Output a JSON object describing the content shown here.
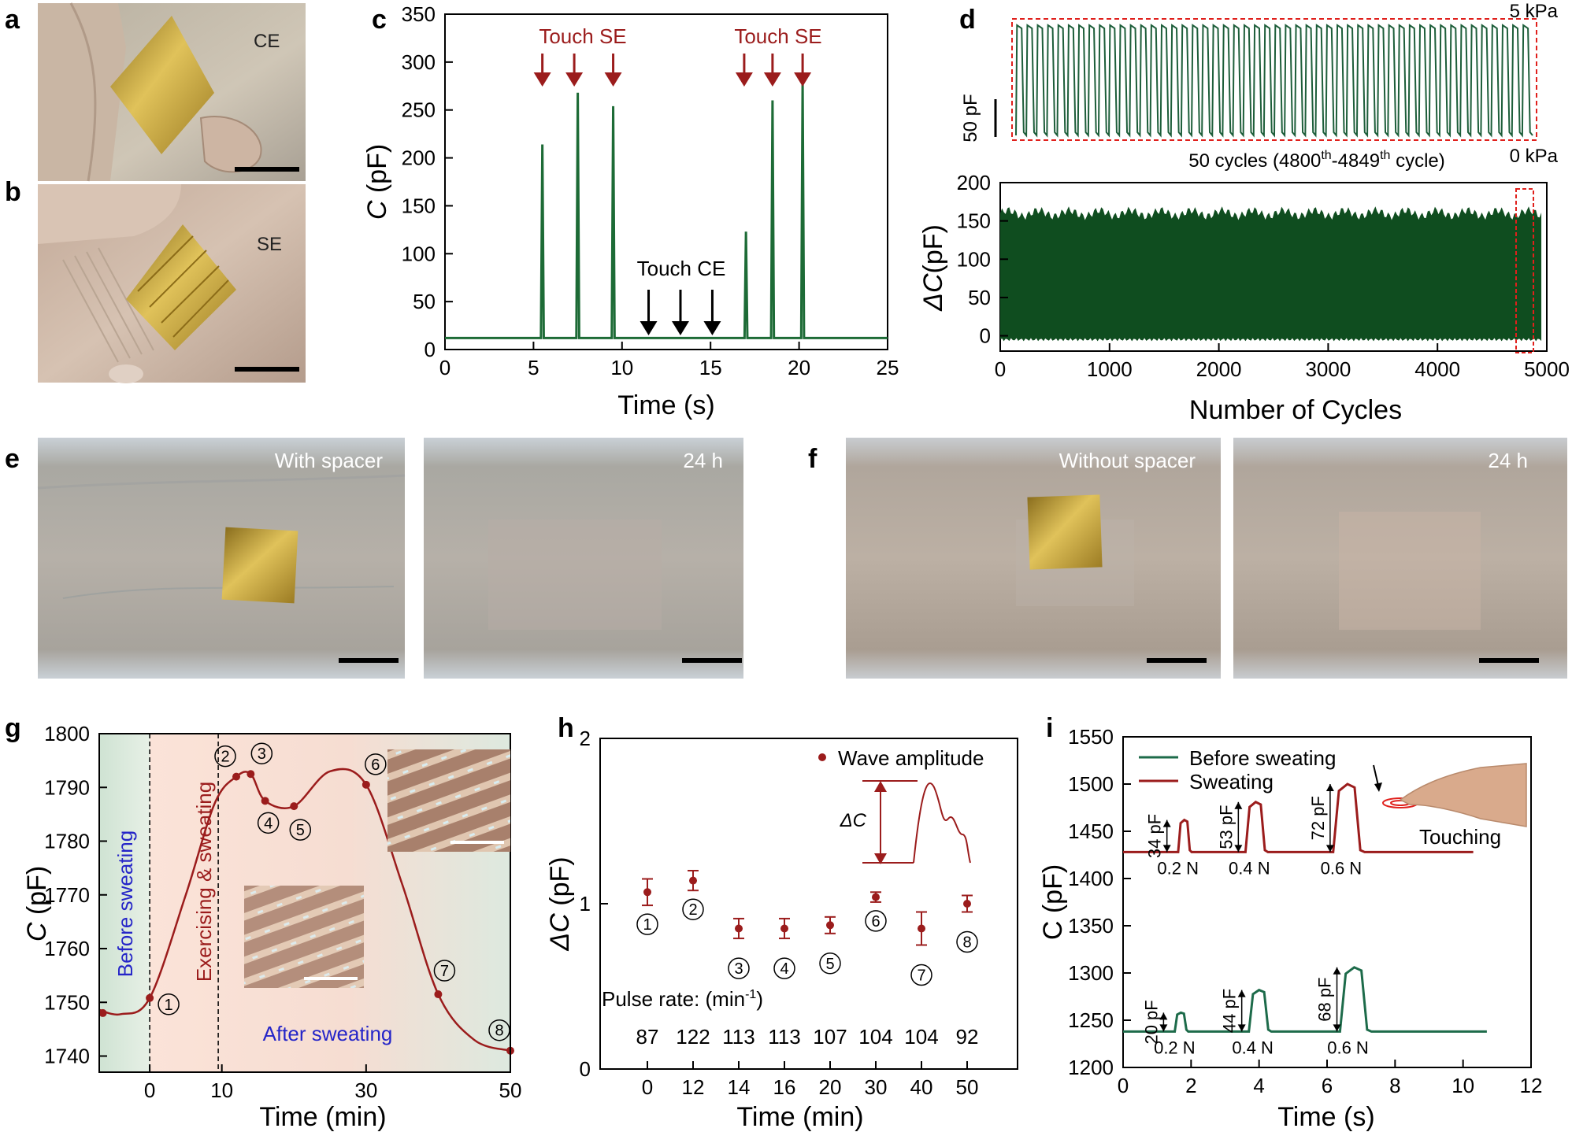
{
  "panel_labels": {
    "a": "a",
    "b": "b",
    "c": "c",
    "d": "d",
    "e": "e",
    "f": "f",
    "g": "g",
    "h": "h",
    "i": "i"
  },
  "photos": {
    "a": {
      "caption": "CE"
    },
    "b": {
      "caption": "SE"
    },
    "e1": {
      "caption": "With spacer"
    },
    "e2": {
      "caption": "24 h"
    },
    "f1": {
      "caption": "Without spacer"
    },
    "f2": {
      "caption": "24 h"
    }
  },
  "colors": {
    "green": "#1d5e3a",
    "darkgreen": "#1a4d24",
    "red": "#9b1c1c",
    "blue": "#2525c8",
    "black": "#000000"
  },
  "chart_data": [
    {
      "id": "c",
      "type": "line",
      "xlabel": "Time (s)",
      "ylabel_italic": "C",
      "ylabel_rest": " (pF)",
      "xlim": [
        0,
        25
      ],
      "ylim": [
        0,
        350
      ],
      "xticks": [
        "0",
        "5",
        "10",
        "15",
        "20",
        "25"
      ],
      "yticks": [
        "0",
        "50",
        "100",
        "150",
        "200",
        "250",
        "300",
        "350"
      ],
      "baseline": 12,
      "peaks": [
        {
          "x": 5.5,
          "y": 214
        },
        {
          "x": 7.5,
          "y": 268
        },
        {
          "x": 9.5,
          "y": 254
        },
        {
          "x": 17.0,
          "y": 123
        },
        {
          "x": 18.5,
          "y": 260
        },
        {
          "x": 20.2,
          "y": 280
        }
      ],
      "annotations": {
        "touch_se_1": "Touch SE",
        "touch_se_2": "Touch SE",
        "touch_ce": "Touch CE"
      },
      "arrows_se": [
        5.5,
        7.3,
        9.5,
        16.9,
        18.5,
        20.2
      ],
      "arrows_ce": [
        11.5,
        13.3,
        15.1
      ]
    },
    {
      "id": "d",
      "type": "area",
      "xlabel": "Number of Cycles",
      "ylabel_delta": "Δ",
      "ylabel_italic": "C",
      "ylabel_rest": "(pF)",
      "xlim": [
        0,
        5000
      ],
      "ylim": [
        -20,
        200
      ],
      "xticks": [
        "0",
        "1000",
        "2000",
        "3000",
        "4000",
        "5000"
      ],
      "yticks": [
        "0",
        "50",
        "100",
        "150",
        "200"
      ],
      "band_top": 160,
      "band_bottom": -5,
      "inset": {
        "cycles": 50,
        "caption_prefix": "50 cycles (4800",
        "sup1": "th",
        "caption_mid": "-4849",
        "sup2": "th",
        "caption_suffix": " cycle)",
        "top_label": "5 kPa",
        "bottom_label": "0 kPa",
        "scale_label": "50 pF"
      }
    },
    {
      "id": "g",
      "type": "line",
      "xlabel": "Time (min)",
      "ylabel_italic": "C",
      "ylabel_rest": " (pF)",
      "xlim": [
        -7,
        50
      ],
      "ylim": [
        1737,
        1800
      ],
      "xticks": [
        "0",
        "10",
        "30",
        "50"
      ],
      "xtick_values": [
        0,
        10,
        30,
        50
      ],
      "yticks": [
        "1740",
        "1750",
        "1760",
        "1770",
        "1780",
        "1790",
        "1800"
      ],
      "points": [
        {
          "x": -6.5,
          "y": 1748,
          "label": ""
        },
        {
          "x": 0,
          "y": 1750.8,
          "label": "1"
        },
        {
          "x": 12,
          "y": 1792,
          "label": "2"
        },
        {
          "x": 14,
          "y": 1792.5,
          "label": "3"
        },
        {
          "x": 16,
          "y": 1787.5,
          "label": "4"
        },
        {
          "x": 20,
          "y": 1786.5,
          "label": "5"
        },
        {
          "x": 30,
          "y": 1790.5,
          "label": "6"
        },
        {
          "x": 40,
          "y": 1751.5,
          "label": "7"
        },
        {
          "x": 50,
          "y": 1741,
          "label": "8"
        }
      ],
      "annotations": {
        "before": "Before sweating",
        "exercising": "Exercising & sweating",
        "after": "After sweating"
      }
    },
    {
      "id": "h",
      "type": "scatter",
      "xlabel": "Time (min)",
      "ylabel_delta": "Δ",
      "ylabel_italic": "C",
      "ylabel_rest": " (pF)",
      "ylim": [
        0,
        2
      ],
      "yticks": [
        "0",
        "1",
        "2"
      ],
      "categories": [
        "0",
        "12",
        "14",
        "16",
        "20",
        "30",
        "40",
        "50"
      ],
      "values": [
        1.07,
        1.14,
        0.85,
        0.85,
        0.87,
        1.04,
        0.85,
        1.0
      ],
      "errors": [
        0.08,
        0.06,
        0.06,
        0.06,
        0.05,
        0.03,
        0.1,
        0.05
      ],
      "point_labels": [
        "1",
        "2",
        "3",
        "4",
        "5",
        "6",
        "7",
        "8"
      ],
      "legend": "Wave amplitude",
      "pulse_label": "Pulse rate: (min",
      "pulse_sup": "-1",
      "pulse_close": ")",
      "pulse_rates": [
        "87",
        "122",
        "113",
        "113",
        "107",
        "104",
        "104",
        "92"
      ],
      "inset_label": "ΔC"
    },
    {
      "id": "i",
      "type": "line",
      "xlabel": "Time (s)",
      "ylabel": "C (pF)",
      "xlim": [
        0,
        12
      ],
      "ylim": [
        1200,
        1550
      ],
      "xticks": [
        "0",
        "2",
        "4",
        "6",
        "8",
        "10",
        "12"
      ],
      "yticks": [
        "1200",
        "1250",
        "1300",
        "1350",
        "1400",
        "1450",
        "1500",
        "1550"
      ],
      "series": [
        {
          "name": "Before sweating",
          "baseline": 1238,
          "end_x": 10.7,
          "peaks": [
            {
              "x": 1.7,
              "h": 20,
              "label": "20 pF",
              "force": "0.2 N"
            },
            {
              "x": 4.0,
              "h": 44,
              "label": "44 pF",
              "force": "0.4 N"
            },
            {
              "x": 6.8,
              "h": 68,
              "label": "68 pF",
              "force": "0.6 N"
            }
          ]
        },
        {
          "name": "Sweating",
          "baseline": 1428,
          "end_x": 10.3,
          "peaks": [
            {
              "x": 1.8,
              "h": 34,
              "label": "34 pF",
              "force": "0.2 N"
            },
            {
              "x": 3.9,
              "h": 53,
              "label": "53 pF",
              "force": "0.4 N"
            },
            {
              "x": 6.6,
              "h": 72,
              "label": "72 pF",
              "force": "0.6 N"
            }
          ]
        }
      ],
      "touching_label": "Touching"
    }
  ]
}
